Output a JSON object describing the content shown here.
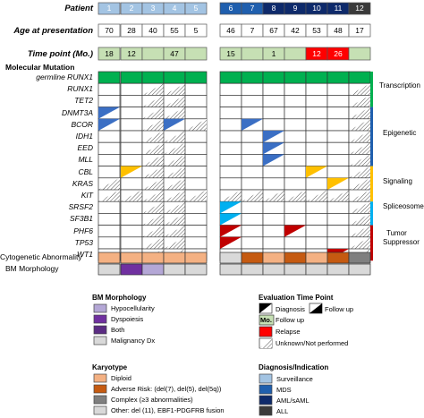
{
  "header": {
    "patient_label": "Patient",
    "age_label": "Age at presentation",
    "timepoint_label": "Time point (Mo.)",
    "molecular_label": "Molecular Mutation",
    "cytogenetic_label": "Cytogenetic Abnormality",
    "bm_label": "BM Morphology"
  },
  "patients": [
    {
      "id": "1",
      "age": "70",
      "time": "18",
      "group": "left",
      "diag": "#a3c4e3"
    },
    {
      "id": "2",
      "age": "28",
      "time": "12",
      "group": "left",
      "diag": "#a3c4e3"
    },
    {
      "id": "3",
      "age": "40",
      "time": "",
      "group": "left",
      "diag": "#a3c4e3"
    },
    {
      "id": "4",
      "age": "55",
      "time": "47",
      "group": "left",
      "diag": "#a3c4e3"
    },
    {
      "id": "5",
      "age": "5",
      "time": "",
      "group": "left",
      "diag": "#a3c4e3"
    },
    {
      "id": "6",
      "age": "46",
      "time": "15",
      "group": "right",
      "diag": "#1f5fae"
    },
    {
      "id": "7",
      "age": "7",
      "time": "",
      "group": "right",
      "diag": "#1f5fae"
    },
    {
      "id": "8",
      "age": "67",
      "time": "1",
      "group": "right",
      "diag": "#0e2a6b"
    },
    {
      "id": "9",
      "age": "42",
      "time": "",
      "group": "right",
      "diag": "#0e2a6b"
    },
    {
      "id": "10",
      "age": "53",
      "time": "12",
      "group": "right",
      "diag": "#0e2a6b"
    },
    {
      "id": "11",
      "age": "48",
      "time": "26",
      "group": "right",
      "diag": "#0e2a6b"
    },
    {
      "id": "12",
      "age": "17",
      "time": "",
      "group": "right",
      "diag": "#3a3a3a"
    }
  ],
  "time_colors": [
    "#c6e0b4",
    "#c6e0b4",
    "#c6e0b4",
    "#c6e0b4",
    "#c6e0b4",
    "#c6e0b4",
    "#c6e0b4",
    "#c6e0b4",
    "#c6e0b4",
    "#ff0000",
    "#ff0000",
    "#c6e0b4"
  ],
  "genes": [
    {
      "name": "germline RUNX1",
      "cells": [
        "G",
        "G",
        "G",
        "G",
        "G",
        "G",
        "G",
        "G",
        "G",
        "G",
        "G",
        "G"
      ]
    },
    {
      "name": "RUNX1",
      "cells": [
        "W",
        "W",
        "H",
        "H",
        "W",
        "W",
        "W",
        "W",
        "W",
        "W",
        "W",
        "H"
      ]
    },
    {
      "name": "TET2",
      "cells": [
        "W",
        "W",
        "H",
        "H",
        "W",
        "W",
        "W",
        "W",
        "W",
        "W",
        "W",
        "H"
      ]
    },
    {
      "name": "DNMT3A",
      "cells": [
        "B",
        "W",
        "H",
        "H",
        "W",
        "W",
        "W",
        "W",
        "W",
        "W",
        "W",
        "H"
      ]
    },
    {
      "name": "BCOR",
      "cells": [
        "B",
        "W",
        "H",
        "B",
        "H",
        "W",
        "B",
        "W",
        "W",
        "W",
        "W",
        "H"
      ]
    },
    {
      "name": "IDH1",
      "cells": [
        "W",
        "W",
        "H",
        "H",
        "W",
        "W",
        "W",
        "B",
        "W",
        "W",
        "W",
        "H"
      ]
    },
    {
      "name": "EED",
      "cells": [
        "W",
        "W",
        "H",
        "H",
        "W",
        "W",
        "W",
        "B",
        "W",
        "W",
        "W",
        "H"
      ]
    },
    {
      "name": "MLL",
      "cells": [
        "W",
        "W",
        "H",
        "H",
        "W",
        "W",
        "W",
        "B",
        "W",
        "W",
        "W",
        "H"
      ]
    },
    {
      "name": "CBL",
      "cells": [
        "W",
        "Y",
        "H",
        "H",
        "W",
        "W",
        "W",
        "W",
        "W",
        "Y",
        "W",
        "H"
      ]
    },
    {
      "name": "KRAS",
      "cells": [
        "H",
        "W",
        "H",
        "H",
        "W",
        "W",
        "W",
        "W",
        "W",
        "W",
        "Y",
        "H"
      ]
    },
    {
      "name": "KIT",
      "cells": [
        "H",
        "H",
        "H",
        "H",
        "H",
        "H",
        "H",
        "H",
        "H",
        "H",
        "H",
        "H"
      ]
    },
    {
      "name": "SRSF2",
      "cells": [
        "W",
        "W",
        "H",
        "H",
        "W",
        "C",
        "W",
        "W",
        "W",
        "W",
        "W",
        "H"
      ]
    },
    {
      "name": "SF3B1",
      "cells": [
        "W",
        "W",
        "H",
        "H",
        "W",
        "C",
        "W",
        "W",
        "W",
        "W",
        "W",
        "H"
      ]
    },
    {
      "name": "PHF6",
      "cells": [
        "W",
        "W",
        "H",
        "H",
        "W",
        "R",
        "W",
        "W",
        "R",
        "W",
        "W",
        "H"
      ]
    },
    {
      "name": "TP53",
      "cells": [
        "W",
        "W",
        "H",
        "H",
        "W",
        "R",
        "W",
        "W",
        "W",
        "W",
        "W",
        "H"
      ]
    },
    {
      "name": "WT1",
      "cells": [
        "W",
        "W",
        "H",
        "H",
        "W",
        "W",
        "W",
        "W",
        "W",
        "W",
        "R",
        "H"
      ]
    }
  ],
  "cytogenetic": [
    "#f4b183",
    "#f4b183",
    "#f4b183",
    "#f4b183",
    "#f4b183",
    "#d9d9d9",
    "#c55a11",
    "#f4b183",
    "#c55a11",
    "#f4b183",
    "#c55a11",
    "#7f7f7f"
  ],
  "bm_morphology": [
    "#d9d9d9",
    "#7030a0",
    "#b4a7d6",
    "#d9d9d9",
    "#d9d9d9",
    "#d9d9d9",
    "#d9d9d9",
    "#d9d9d9",
    "#d9d9d9",
    "#d9d9d9",
    "#d9d9d9",
    "#d9d9d9"
  ],
  "categories": [
    {
      "name": "Transcription",
      "color": "#00b050",
      "from": 0,
      "to": 3
    },
    {
      "name": "Epigenetic",
      "color": "#1f5fae",
      "from": 3,
      "to": 8
    },
    {
      "name": "Signaling",
      "color": "#ffc000",
      "from": 8,
      "to": 11
    },
    {
      "name": "Spliceosome",
      "color": "#00b0f0",
      "from": 11,
      "to": 13
    },
    {
      "name": "Tumor Suppressor",
      "color": "#c00000",
      "from": 13,
      "to": 16
    }
  ],
  "category_labels": {
    "tumor1": "Tumor",
    "tumor2": "Suppressor"
  },
  "legend_bm": {
    "title": "BM Morphology",
    "items": [
      {
        "label": "Hypocellularity",
        "color": "#b4a7d6"
      },
      {
        "label": "Dyspoiesis",
        "color": "#7030a0"
      },
      {
        "label": "Both",
        "color": "#5b2c83"
      },
      {
        "label": "Malignancy Dx",
        "color": "#d9d9d9"
      }
    ]
  },
  "legend_karyotype": {
    "title": "Karyotype",
    "items": [
      {
        "label": "Diploid",
        "color": "#f4b183"
      },
      {
        "label": "Adverse Risk: (del(7), del(5), del(5q))",
        "color": "#c55a11"
      },
      {
        "label": "Complex (≥3 abnormalities)",
        "color": "#7f7f7f"
      },
      {
        "label": "Other: del (11), EBF1-PDGFRB fusion",
        "color": "#d9d9d9"
      }
    ]
  },
  "legend_time": {
    "title": "Evaluation Time Point",
    "diagnosis": "Diagnosis",
    "followup": "Follow up",
    "mo": "Mo.",
    "mo_followup": "Follow up",
    "relapse": "Relapse",
    "unknown": "Unknown/Not performed"
  },
  "legend_diag": {
    "title": "Diagnosis/Indication",
    "items": [
      {
        "label": "Surveillance",
        "color": "#a3c4e3"
      },
      {
        "label": "MDS",
        "color": "#1f5fae"
      },
      {
        "label": "AML/sAML",
        "color": "#0e2a6b"
      },
      {
        "label": "ALL",
        "color": "#3a3a3a"
      }
    ]
  },
  "colors": {
    "mut_green": "#00b050",
    "mut_blue": "#3b6fc4",
    "mut_yellow": "#ffc000",
    "mut_cyan": "#00b0f0",
    "mut_red": "#c00000"
  }
}
